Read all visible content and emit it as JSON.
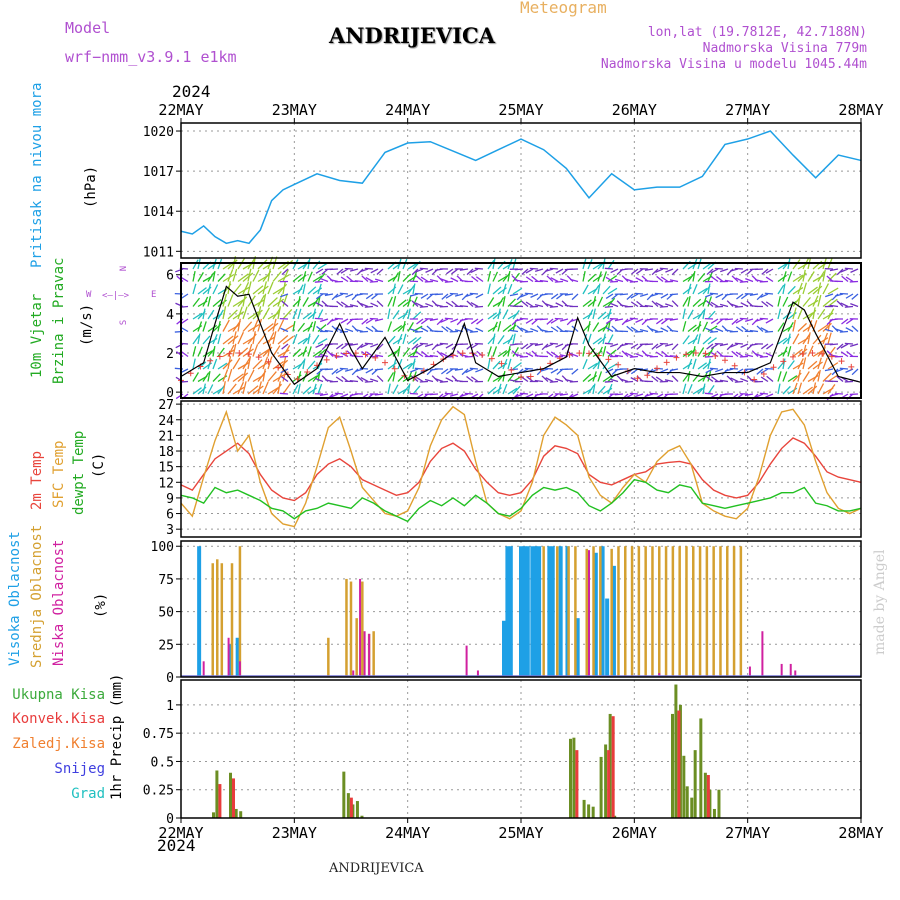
{
  "header": {
    "model_label": "Model",
    "model_name": "wrf−nmm_v3.9.1  e1km",
    "title": "ANDRIJEVICA",
    "product": "Meteogram",
    "lonlat": "lon,lat (19.7812E, 42.7188N)",
    "elevation": "Nadmorska Visina 779m",
    "model_elevation": "Nadmorska Visina u modelu 1045.44m",
    "year_top": "2024",
    "year_bottom": "2024",
    "footer": "ANDRIJEVICA",
    "credit": "made by Angel"
  },
  "colors": {
    "pressure": "#1ea0e6",
    "t2m": "#e8453c",
    "tsfc": "#e0a030",
    "dewpt": "#22c022",
    "cloud_high": "#1ea0e6",
    "cloud_mid": "#d4a030",
    "cloud_low": "#d020a0",
    "precip_total": "#3caa3c",
    "precip_conv": "#e83c3c",
    "precip_freez": "#f08030",
    "snow": "#4040e0",
    "hail": "#20c0c0",
    "label_purple": "#b050d0"
  },
  "legend_wind_compass": {
    "n": "N",
    "e": "E",
    "w": "W",
    "s": "S"
  },
  "chart_data": [
    {
      "type": "line",
      "panel": "pressure",
      "ylabel_1": "Pritisak na nivou mora",
      "ylabel_2": "(hPa)",
      "x_ticks": [
        "22MAY",
        "23MAY",
        "24MAY",
        "25MAY",
        "26MAY",
        "27MAY",
        "28MAY"
      ],
      "ylim": [
        1010.5,
        1020.6
      ],
      "y_ticks": [
        1011,
        1014,
        1017,
        1020
      ],
      "series": [
        {
          "x": [
            0,
            0.1,
            0.2,
            0.3,
            0.4,
            0.5,
            0.6,
            0.7,
            0.8,
            0.9,
            1.0,
            1.2,
            1.4,
            1.6,
            1.8,
            2.0,
            2.2,
            2.4,
            2.6,
            2.8,
            3.0,
            3.2,
            3.4,
            3.6,
            3.8,
            4.0,
            4.2,
            4.4,
            4.6,
            4.8,
            5.0,
            5.2,
            5.4,
            5.6,
            5.8,
            6.0
          ],
          "y": [
            1012.5,
            1012.3,
            1012.9,
            1012.1,
            1011.6,
            1011.8,
            1011.6,
            1012.6,
            1014.8,
            1015.6,
            1016.0,
            1016.8,
            1016.3,
            1016.1,
            1018.4,
            1019.1,
            1019.2,
            1018.5,
            1017.8,
            1018.6,
            1019.4,
            1018.6,
            1017.2,
            1015.0,
            1016.8,
            1015.6,
            1015.8,
            1015.8,
            1016.6,
            1019.0,
            1019.4,
            1020.0,
            1018.2,
            1016.5,
            1018.2,
            1017.8
          ]
        }
      ]
    },
    {
      "type": "line",
      "panel": "wind",
      "ylabel_1": "10m Vjetar",
      "ylabel_2": "Brzina i Pravac",
      "ylabel_3": "(m/s)",
      "ylim": [
        -0.3,
        6.6
      ],
      "y_ticks": [
        0,
        2,
        4,
        6
      ],
      "series": [
        {
          "name": "speed",
          "x": [
            0,
            0.2,
            0.3,
            0.4,
            0.5,
            0.6,
            0.8,
            1.0,
            1.2,
            1.4,
            1.5,
            1.6,
            1.8,
            2.0,
            2.2,
            2.4,
            2.5,
            2.6,
            2.8,
            3.0,
            3.2,
            3.4,
            3.5,
            3.6,
            3.8,
            4.0,
            4.2,
            4.4,
            4.6,
            4.8,
            5.0,
            5.2,
            5.4,
            5.5,
            5.6,
            5.8,
            6.0
          ],
          "y": [
            0.8,
            1.5,
            3.5,
            5.4,
            4.9,
            5.0,
            2.0,
            0.4,
            1.2,
            3.5,
            2.2,
            1.2,
            2.8,
            0.6,
            1.2,
            2.0,
            3.5,
            1.5,
            0.8,
            1.0,
            1.2,
            1.8,
            3.8,
            2.4,
            0.8,
            1.2,
            1.0,
            1.0,
            0.8,
            1.0,
            1.0,
            1.5,
            4.6,
            4.2,
            3.0,
            0.8,
            0.5
          ]
        }
      ]
    },
    {
      "type": "line",
      "panel": "temperature",
      "ylabel_1": "2m Temp",
      "ylabel_2": "SFC Temp",
      "ylabel_3": "dewpt Temp",
      "ylabel_4": "(C)",
      "ylim": [
        1.5,
        27.6
      ],
      "y_ticks": [
        3,
        6,
        9,
        12,
        15,
        18,
        21,
        24,
        27
      ],
      "series": [
        {
          "name": "2m Temp",
          "x": [
            0,
            0.1,
            0.2,
            0.3,
            0.4,
            0.5,
            0.6,
            0.7,
            0.8,
            0.9,
            1.0,
            1.1,
            1.2,
            1.3,
            1.4,
            1.5,
            1.6,
            1.7,
            1.8,
            1.9,
            2.0,
            2.1,
            2.2,
            2.3,
            2.4,
            2.5,
            2.6,
            2.7,
            2.8,
            2.9,
            3.0,
            3.1,
            3.2,
            3.3,
            3.4,
            3.5,
            3.6,
            3.7,
            3.8,
            3.9,
            4.0,
            4.1,
            4.2,
            4.3,
            4.4,
            4.5,
            4.6,
            4.7,
            4.8,
            4.9,
            5.0,
            5.1,
            5.2,
            5.3,
            5.4,
            5.5,
            5.6,
            5.7,
            5.8,
            5.9,
            6.0
          ],
          "y": [
            11.5,
            10.5,
            13.5,
            16.5,
            18.0,
            19.5,
            17.5,
            13.5,
            10.5,
            9.0,
            8.5,
            10.0,
            13.5,
            15.5,
            16.5,
            15.0,
            12.5,
            11.5,
            10.5,
            9.5,
            10.0,
            12.0,
            16.0,
            18.5,
            19.5,
            18.0,
            14.5,
            12.0,
            10.0,
            9.5,
            10.0,
            12.5,
            17.0,
            19.0,
            18.5,
            17.5,
            13.5,
            12.0,
            11.5,
            12.5,
            13.5,
            14.0,
            15.5,
            15.8,
            16.0,
            15.5,
            12.5,
            10.5,
            9.5,
            9.0,
            9.5,
            12.0,
            15.5,
            18.5,
            20.5,
            19.5,
            17.0,
            14.0,
            13.0,
            12.5,
            12.0
          ]
        },
        {
          "name": "SFC Temp",
          "x": [
            0,
            0.1,
            0.2,
            0.3,
            0.4,
            0.5,
            0.6,
            0.7,
            0.8,
            0.9,
            1.0,
            1.1,
            1.2,
            1.3,
            1.4,
            1.5,
            1.6,
            1.7,
            1.8,
            1.9,
            2.0,
            2.1,
            2.2,
            2.3,
            2.4,
            2.5,
            2.6,
            2.7,
            2.8,
            2.9,
            3.0,
            3.1,
            3.2,
            3.3,
            3.4,
            3.5,
            3.6,
            3.7,
            3.8,
            3.9,
            4.0,
            4.1,
            4.2,
            4.3,
            4.4,
            4.5,
            4.6,
            4.7,
            4.8,
            4.9,
            5.0,
            5.1,
            5.2,
            5.3,
            5.4,
            5.5,
            5.6,
            5.7,
            5.8,
            5.9,
            6.0
          ],
          "y": [
            8.0,
            5.5,
            13.0,
            20.0,
            25.5,
            18.0,
            21.0,
            12.0,
            6.0,
            4.0,
            3.5,
            8.0,
            15.0,
            22.5,
            24.5,
            18.0,
            11.0,
            8.5,
            6.0,
            5.5,
            6.5,
            11.0,
            19.0,
            24.0,
            26.5,
            25.0,
            16.0,
            8.0,
            6.0,
            5.0,
            6.5,
            12.0,
            21.0,
            24.5,
            23.0,
            21.0,
            13.0,
            9.5,
            8.0,
            11.0,
            13.5,
            12.0,
            16.0,
            18.0,
            19.0,
            15.5,
            8.0,
            6.5,
            5.5,
            5.0,
            7.0,
            13.0,
            21.0,
            25.5,
            26.0,
            23.0,
            16.0,
            10.0,
            7.0,
            6.0,
            7.0
          ]
        },
        {
          "name": "dewpt Temp",
          "x": [
            0,
            0.1,
            0.2,
            0.3,
            0.4,
            0.5,
            0.6,
            0.7,
            0.8,
            0.9,
            1.0,
            1.1,
            1.2,
            1.3,
            1.4,
            1.5,
            1.6,
            1.7,
            1.8,
            1.9,
            2.0,
            2.1,
            2.2,
            2.3,
            2.4,
            2.5,
            2.6,
            2.7,
            2.8,
            2.9,
            3.0,
            3.1,
            3.2,
            3.3,
            3.4,
            3.5,
            3.6,
            3.7,
            3.8,
            3.9,
            4.0,
            4.1,
            4.2,
            4.3,
            4.4,
            4.5,
            4.6,
            4.7,
            4.8,
            4.9,
            5.0,
            5.1,
            5.2,
            5.3,
            5.4,
            5.5,
            5.6,
            5.7,
            5.8,
            5.9,
            6.0
          ],
          "y": [
            9.5,
            9.0,
            8.0,
            11.0,
            10.0,
            10.5,
            9.5,
            8.5,
            7.0,
            6.5,
            5.0,
            6.5,
            7.0,
            8.0,
            7.5,
            7.0,
            9.0,
            8.0,
            6.5,
            5.5,
            4.5,
            7.0,
            8.5,
            7.5,
            9.0,
            7.5,
            9.5,
            8.0,
            6.0,
            5.5,
            7.0,
            9.5,
            11.0,
            10.5,
            11.0,
            10.0,
            7.5,
            6.5,
            8.0,
            10.0,
            12.5,
            12.0,
            10.5,
            10.0,
            11.5,
            11.0,
            8.0,
            7.5,
            7.0,
            7.5,
            8.0,
            8.5,
            9.0,
            10.0,
            10.0,
            11.0,
            8.0,
            7.5,
            6.5,
            6.5,
            7.0
          ]
        }
      ]
    },
    {
      "type": "bar",
      "panel": "clouds",
      "ylabel_1": "Visoka Oblacnost",
      "ylabel_2": "Srednja Oblacnost",
      "ylabel_3": "Niska Oblacnost",
      "ylabel_4": "(%)",
      "ylim": [
        0,
        104
      ],
      "y_ticks": [
        0,
        25,
        50,
        75,
        100
      ],
      "series": [
        {
          "name": "Visoka Oblacnost",
          "x": [
            0.16,
            0.44,
            0.5,
            2.85,
            2.88,
            2.91,
            3.0,
            3.03,
            3.06,
            3.1,
            3.13,
            3.16,
            3.25,
            3.28,
            3.35,
            3.41,
            3.5,
            3.66,
            3.72,
            3.76,
            3.82
          ],
          "values": [
            100,
            25,
            30,
            43,
            100,
            100,
            100,
            100,
            100,
            100,
            100,
            100,
            100,
            100,
            100,
            100,
            45,
            95,
            100,
            60,
            85
          ]
        },
        {
          "name": "Srednja Oblacnost",
          "x": [
            0.28,
            0.32,
            0.36,
            0.45,
            0.52,
            1.3,
            1.46,
            1.5,
            1.55,
            1.6,
            1.66,
            1.7,
            3.2,
            3.32,
            3.42,
            3.48,
            3.58,
            3.64,
            3.7,
            3.8,
            3.86,
            3.92,
            3.98,
            4.04,
            4.1,
            4.16,
            4.22,
            4.28,
            4.34,
            4.4,
            4.46,
            4.52,
            4.58,
            4.64,
            4.7,
            4.76,
            4.82,
            4.88,
            4.94,
            5.0
          ],
          "values": [
            87,
            90,
            87,
            87,
            100,
            30,
            75,
            73,
            45,
            73,
            33,
            35,
            100,
            100,
            100,
            100,
            98,
            100,
            100,
            98,
            100,
            100,
            100,
            100,
            100,
            100,
            100,
            100,
            100,
            100,
            100,
            100,
            100,
            100,
            100,
            100,
            100,
            100,
            100,
            0
          ]
        },
        {
          "name": "Niska Oblacnost",
          "x": [
            0.2,
            0.42,
            0.52,
            1.52,
            1.58,
            1.62,
            1.66,
            2.52,
            2.62,
            3.6,
            4.22,
            5.02,
            5.13,
            5.3,
            5.38,
            5.42
          ],
          "values": [
            12,
            30,
            12,
            5,
            75,
            35,
            33,
            24,
            5,
            97,
            3,
            8,
            35,
            10,
            10,
            5
          ]
        }
      ]
    },
    {
      "type": "bar",
      "panel": "precip",
      "ylabel_1": "1hr Precip (mm)",
      "legend": [
        "Ukupna Kisa",
        "Konvek.Kisa",
        "Zaledj.Kisa",
        "Snijeg",
        "Grad"
      ],
      "ylim": [
        0,
        1.22
      ],
      "y_ticks": [
        0,
        0.25,
        0.5,
        0.75,
        1
      ],
      "series": [
        {
          "name": "Ukupna Kisa",
          "x": [
            0.3,
            0.33,
            0.45,
            0.5,
            0.54,
            1.45,
            1.49,
            1.53,
            1.57,
            1.61,
            3.45,
            3.48,
            3.57,
            3.61,
            3.65,
            3.72,
            3.76,
            3.8,
            3.84,
            4.35,
            4.38,
            4.42,
            4.45,
            4.48,
            4.52,
            4.55,
            4.6,
            4.64,
            4.68,
            4.72,
            4.76
          ],
          "values": [
            0.05,
            0.42,
            0.4,
            0.08,
            0.06,
            0.41,
            0.22,
            0.12,
            0.15,
            0.02,
            0.7,
            0.71,
            0.16,
            0.12,
            0.1,
            0.54,
            0.65,
            0.92,
            0.02,
            0.92,
            1.18,
            1.0,
            0.55,
            0.28,
            0.18,
            0.6,
            0.88,
            0.4,
            0.25,
            0.08,
            0.25
          ]
        },
        {
          "name": "Konvek.Kisa",
          "x": [
            0.33,
            0.45,
            1.49,
            3.48,
            3.76,
            3.8,
            4.38,
            4.64
          ],
          "values": [
            0.3,
            0.35,
            0.18,
            0.6,
            0.6,
            0.9,
            0.95,
            0.38
          ]
        }
      ]
    }
  ]
}
